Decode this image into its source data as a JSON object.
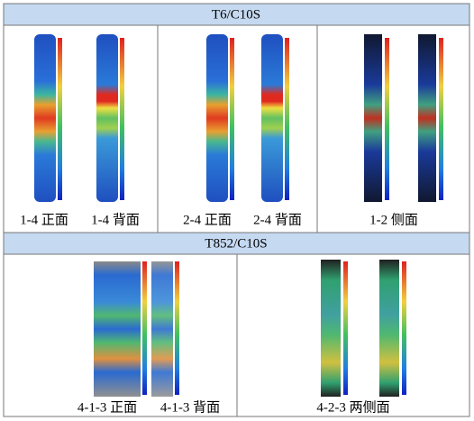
{
  "rows": [
    {
      "title": "T6/C10S",
      "cells": [
        {
          "labels": [
            "1-4 正面",
            "1-4 背面"
          ]
        },
        {
          "labels": [
            "2-4 正面",
            "2-4 背面"
          ]
        },
        {
          "labels": [
            "1-2 侧面"
          ]
        }
      ]
    },
    {
      "title": "T852/C10S",
      "cells": [
        {
          "labels": [
            "4-1-3 正面",
            "4-1-3 背面"
          ]
        },
        {
          "labels": [
            "4-2-3 两侧面"
          ]
        }
      ]
    }
  ]
}
